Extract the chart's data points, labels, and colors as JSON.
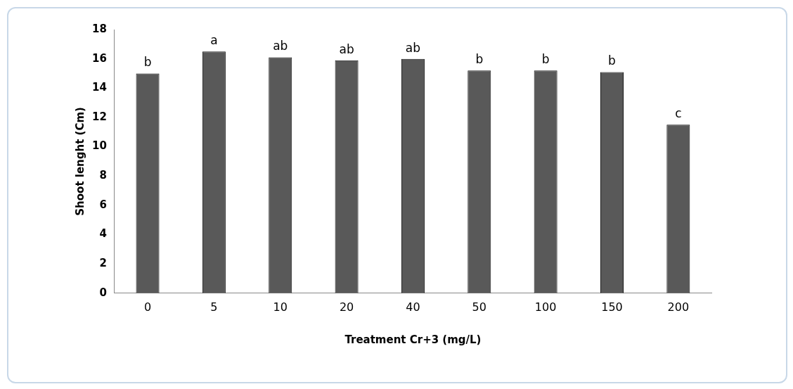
{
  "chart_data": {
    "type": "bar",
    "xlabel": "Treatment Cr+3 (mg/L)",
    "ylabel": "Shoot lenght (Cm)",
    "categories": [
      "0",
      "5",
      "10",
      "20",
      "40",
      "50",
      "100",
      "150",
      "200"
    ],
    "values": [
      15.0,
      16.5,
      16.1,
      15.9,
      16.0,
      15.2,
      15.2,
      15.1,
      11.5
    ],
    "value_labels": [
      "b",
      "a",
      "ab",
      "ab",
      "ab",
      "b",
      "b",
      "b",
      "c"
    ],
    "color": "#595959",
    "ylim": [
      0,
      18
    ],
    "yticks": [
      0,
      2,
      4,
      6,
      8,
      10,
      12,
      14,
      16,
      18
    ],
    "grid": false,
    "legend": false
  }
}
